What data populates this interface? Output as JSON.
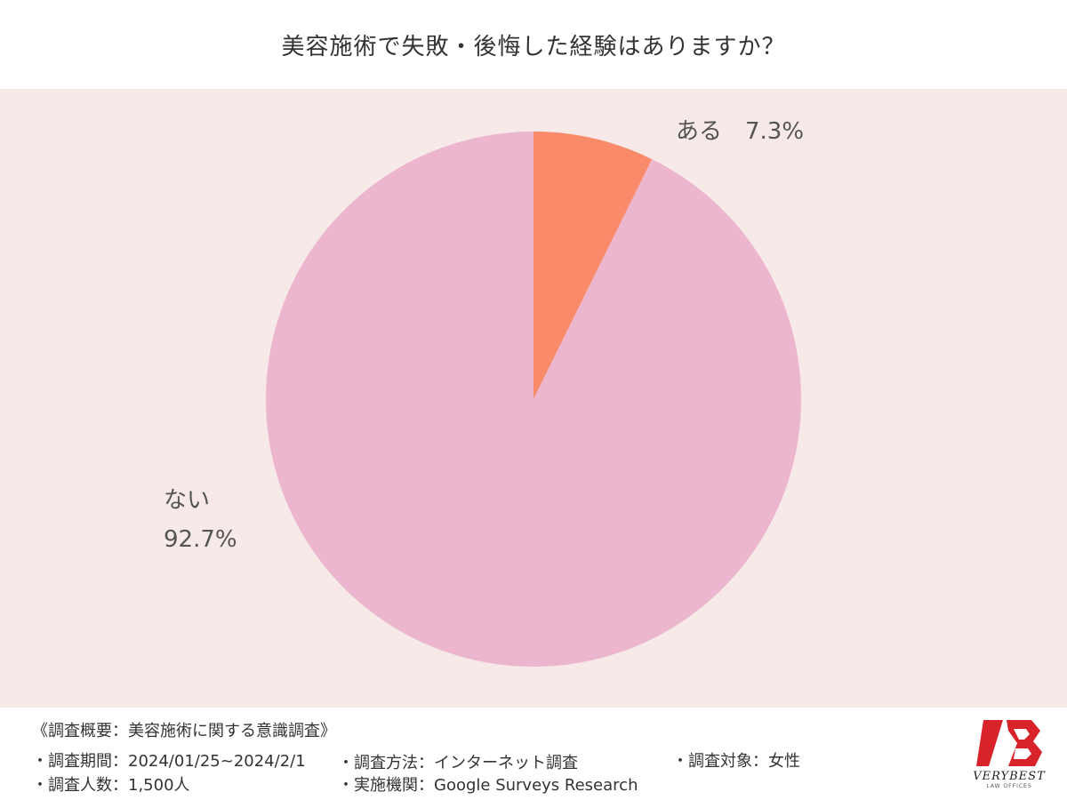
{
  "chart_data": {
    "type": "pie",
    "title": "美容施術で失敗・後悔した経験はありますか？",
    "slices": [
      {
        "label": "ある",
        "value": 7.3,
        "display": "7.3%",
        "color": "#f98a6a"
      },
      {
        "label": "ない",
        "value": 92.7,
        "display": "92.7%",
        "color": "#ecb6ce"
      }
    ],
    "start_angle": "12 o'clock",
    "direction": "clockwise",
    "background": "#f6e9e8"
  },
  "footer": {
    "heading": "《調査概要：美容施術に関する意識調査》",
    "period": "・調査期間：2024/01/25~2024/2/1",
    "count": "・調査人数：1,500人",
    "method": "・調査方法：インターネット調査",
    "org": "・実施機関：Google Surveys Research",
    "target": "・調査対象：女性"
  },
  "logo": {
    "name": "VERYBEST",
    "sub": "LAW OFFICES",
    "color": "#d9232b"
  }
}
